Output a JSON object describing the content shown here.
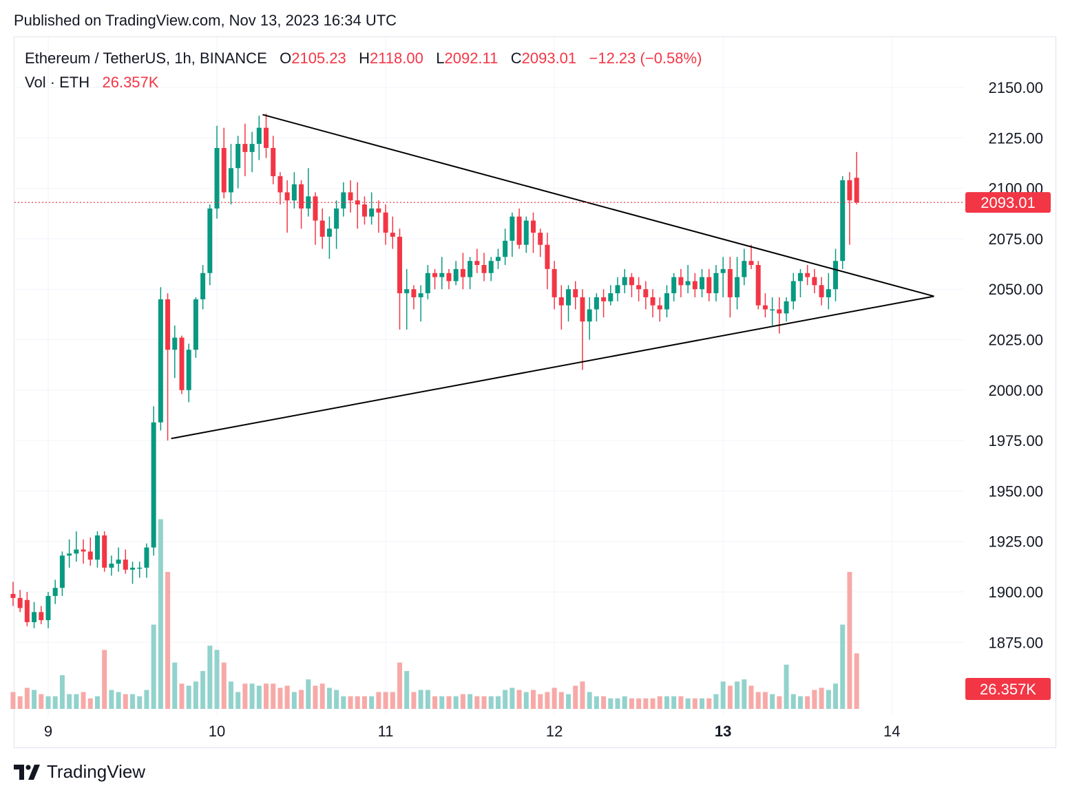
{
  "published": "Published on TradingView.com, Nov 13, 2023 16:34 UTC",
  "legend": {
    "symbol": "Ethereum / TetherUS, 1h, BINANCE",
    "o_label": "O",
    "o_value": "2105.23",
    "h_label": "H",
    "h_value": "2118.00",
    "l_label": "L",
    "l_value": "2092.11",
    "c_label": "C",
    "c_value": "2093.01",
    "change": "−12.23 (−0.58%)",
    "vol_label": "Vol · ETH",
    "vol_value": "26.357K"
  },
  "footer": {
    "brand": "TradingView",
    "logo_icon": "tradingview-logo-icon"
  },
  "colors": {
    "up": "#089981",
    "down": "#f23645",
    "vol_up": "#92d2cc",
    "vol_down": "#f7a9a7",
    "grid": "#f0f3fa",
    "trendline": "#000000"
  },
  "chart_data": {
    "type": "candlestick",
    "symbol": "ETHUSDT",
    "interval": "1h",
    "exchange": "BINANCE",
    "y_ticks": [
      "2150.00",
      "2125.00",
      "2100.00",
      "2075.00",
      "2050.00",
      "2025.00",
      "2000.00",
      "1975.00",
      "1950.00",
      "1925.00",
      "1900.00",
      "1875.00"
    ],
    "x_ticks": [
      {
        "label": "9",
        "t": 0,
        "bold": false
      },
      {
        "label": "10",
        "t": 24,
        "bold": false
      },
      {
        "label": "11",
        "t": 48,
        "bold": false
      },
      {
        "label": "12",
        "t": 72,
        "bold": false
      },
      {
        "label": "13",
        "t": 96,
        "bold": true
      },
      {
        "label": "14",
        "t": 120,
        "bold": false
      }
    ],
    "last_price_label": "2093.01",
    "last_price": 2093.01,
    "last_volume_label": "26.357K",
    "ylim": [
      1858,
      2170
    ],
    "xlim": [
      -5,
      131
    ],
    "volume_scale_max": 80,
    "candles_note": "t = hours from Nov 9 00:00; [t, open, high, low, close, volume_k]",
    "candles": [
      [
        -5,
        1899,
        1905,
        1893,
        1897,
        8
      ],
      [
        -4,
        1897,
        1901,
        1890,
        1892,
        6
      ],
      [
        -3,
        1896,
        1900,
        1883,
        1885,
        10
      ],
      [
        -2,
        1885,
        1895,
        1882,
        1890,
        9
      ],
      [
        -1,
        1890,
        1893,
        1884,
        1886,
        7
      ],
      [
        0,
        1886,
        1900,
        1882,
        1898,
        6
      ],
      [
        1,
        1898,
        1906,
        1894,
        1902,
        6
      ],
      [
        2,
        1902,
        1920,
        1898,
        1918,
        16
      ],
      [
        3,
        1918,
        1926,
        1912,
        1919,
        7
      ],
      [
        4,
        1919,
        1930,
        1915,
        1921,
        7
      ],
      [
        5,
        1921,
        1926,
        1914,
        1920,
        8
      ],
      [
        6,
        1920,
        1927,
        1913,
        1916,
        5
      ],
      [
        7,
        1916,
        1930,
        1912,
        1928,
        6
      ],
      [
        8,
        1928,
        1930,
        1910,
        1912,
        28
      ],
      [
        9,
        1912,
        1918,
        1908,
        1914,
        9
      ],
      [
        10,
        1914,
        1922,
        1910,
        1916,
        8
      ],
      [
        11,
        1916,
        1921,
        1909,
        1911,
        7
      ],
      [
        12,
        1911,
        1915,
        1904,
        1912,
        7
      ],
      [
        13,
        1912,
        1915,
        1907,
        1912,
        6
      ],
      [
        14,
        1912,
        1924,
        1907,
        1922,
        9
      ],
      [
        15,
        1922,
        1992,
        1918,
        1984,
        40
      ],
      [
        16,
        1984,
        2051,
        1980,
        2045,
        90
      ],
      [
        17,
        2045,
        2048,
        1975,
        2020,
        65
      ],
      [
        18,
        2020,
        2032,
        2006,
        2026,
        22
      ],
      [
        19,
        2026,
        2027,
        1998,
        2000,
        12
      ],
      [
        20,
        2000,
        2023,
        1994,
        2020,
        11
      ],
      [
        21,
        2020,
        2046,
        2016,
        2045,
        13
      ],
      [
        22,
        2045,
        2062,
        2040,
        2058,
        18
      ],
      [
        23,
        2058,
        2092,
        2052,
        2090,
        30
      ],
      [
        24,
        2090,
        2131,
        2085,
        2120,
        28
      ],
      [
        25,
        2120,
        2130,
        2095,
        2098,
        22
      ],
      [
        26,
        2098,
        2122,
        2092,
        2110,
        13
      ],
      [
        27,
        2110,
        2126,
        2100,
        2122,
        8
      ],
      [
        28,
        2122,
        2132,
        2106,
        2118,
        12
      ],
      [
        29,
        2118,
        2128,
        2108,
        2122,
        12
      ],
      [
        30,
        2122,
        2136,
        2114,
        2130,
        11
      ],
      [
        31,
        2130,
        2137,
        2115,
        2120,
        12
      ],
      [
        32,
        2120,
        2126,
        2102,
        2106,
        12
      ],
      [
        33,
        2106,
        2108,
        2092,
        2098,
        10
      ],
      [
        34,
        2098,
        2104,
        2078,
        2094,
        11
      ],
      [
        35,
        2094,
        2108,
        2090,
        2102,
        8
      ],
      [
        36,
        2102,
        2104,
        2080,
        2090,
        9
      ],
      [
        37,
        2090,
        2110,
        2086,
        2096,
        14
      ],
      [
        38,
        2096,
        2098,
        2072,
        2084,
        11
      ],
      [
        39,
        2084,
        2090,
        2070,
        2076,
        12
      ],
      [
        40,
        2076,
        2086,
        2065,
        2080,
        10
      ],
      [
        41,
        2080,
        2094,
        2070,
        2090,
        9
      ],
      [
        42,
        2090,
        2103,
        2086,
        2098,
        6
      ],
      [
        43,
        2098,
        2104,
        2088,
        2094,
        6
      ],
      [
        44,
        2094,
        2103,
        2080,
        2092,
        6
      ],
      [
        45,
        2092,
        2096,
        2082,
        2086,
        6
      ],
      [
        46,
        2086,
        2098,
        2082,
        2090,
        6
      ],
      [
        47,
        2090,
        2094,
        2078,
        2088,
        8
      ],
      [
        48,
        2088,
        2092,
        2072,
        2078,
        8
      ],
      [
        49,
        2078,
        2086,
        2070,
        2076,
        8
      ],
      [
        50,
        2076,
        2080,
        2030,
        2048,
        22
      ],
      [
        51,
        2048,
        2060,
        2030,
        2050,
        18
      ],
      [
        52,
        2050,
        2052,
        2040,
        2046,
        8
      ],
      [
        53,
        2046,
        2052,
        2034,
        2048,
        9
      ],
      [
        54,
        2048,
        2062,
        2045,
        2058,
        9
      ],
      [
        55,
        2058,
        2060,
        2050,
        2056,
        6
      ],
      [
        56,
        2056,
        2066,
        2050,
        2058,
        6
      ],
      [
        57,
        2058,
        2060,
        2050,
        2054,
        6
      ],
      [
        58,
        2054,
        2064,
        2052,
        2060,
        6
      ],
      [
        59,
        2060,
        2068,
        2050,
        2056,
        7
      ],
      [
        60,
        2056,
        2066,
        2050,
        2064,
        7
      ],
      [
        61,
        2064,
        2070,
        2058,
        2062,
        6
      ],
      [
        62,
        2062,
        2068,
        2054,
        2058,
        6
      ],
      [
        63,
        2058,
        2066,
        2054,
        2064,
        6
      ],
      [
        64,
        2064,
        2070,
        2060,
        2066,
        6
      ],
      [
        65,
        2066,
        2080,
        2062,
        2074,
        9
      ],
      [
        66,
        2074,
        2088,
        2066,
        2086,
        10
      ],
      [
        67,
        2086,
        2090,
        2070,
        2072,
        9
      ],
      [
        68,
        2072,
        2086,
        2068,
        2084,
        8
      ],
      [
        69,
        2084,
        2088,
        2068,
        2078,
        9
      ],
      [
        70,
        2078,
        2080,
        2066,
        2072,
        7
      ],
      [
        71,
        2072,
        2078,
        2050,
        2060,
        8
      ],
      [
        72,
        2060,
        2064,
        2040,
        2046,
        10
      ],
      [
        73,
        2046,
        2052,
        2030,
        2042,
        8
      ],
      [
        74,
        2042,
        2052,
        2034,
        2050,
        7
      ],
      [
        75,
        2050,
        2054,
        2040,
        2046,
        11
      ],
      [
        76,
        2046,
        2050,
        2010,
        2034,
        13
      ],
      [
        77,
        2034,
        2046,
        2025,
        2040,
        8
      ],
      [
        78,
        2040,
        2048,
        2034,
        2046,
        6
      ],
      [
        79,
        2046,
        2050,
        2036,
        2044,
        6
      ],
      [
        80,
        2044,
        2052,
        2042,
        2048,
        5
      ],
      [
        81,
        2048,
        2056,
        2044,
        2052,
        5
      ],
      [
        82,
        2052,
        2060,
        2048,
        2056,
        6
      ],
      [
        83,
        2056,
        2058,
        2046,
        2052,
        5
      ],
      [
        84,
        2052,
        2056,
        2044,
        2050,
        5
      ],
      [
        85,
        2050,
        2054,
        2040,
        2046,
        5
      ],
      [
        86,
        2046,
        2050,
        2036,
        2042,
        5
      ],
      [
        87,
        2042,
        2046,
        2034,
        2040,
        6
      ],
      [
        88,
        2040,
        2052,
        2036,
        2048,
        6
      ],
      [
        89,
        2048,
        2058,
        2044,
        2056,
        6
      ],
      [
        90,
        2056,
        2060,
        2046,
        2052,
        6
      ],
      [
        91,
        2052,
        2062,
        2048,
        2054,
        5
      ],
      [
        92,
        2054,
        2058,
        2046,
        2050,
        5
      ],
      [
        93,
        2050,
        2060,
        2046,
        2056,
        5
      ],
      [
        94,
        2056,
        2060,
        2044,
        2048,
        5
      ],
      [
        95,
        2048,
        2062,
        2044,
        2058,
        7
      ],
      [
        96,
        2058,
        2066,
        2046,
        2060,
        13
      ],
      [
        97,
        2060,
        2066,
        2036,
        2046,
        11
      ],
      [
        98,
        2046,
        2066,
        2040,
        2056,
        13
      ],
      [
        99,
        2056,
        2070,
        2052,
        2064,
        14
      ],
      [
        100,
        2064,
        2072,
        2060,
        2062,
        11
      ],
      [
        101,
        2062,
        2064,
        2040,
        2042,
        8
      ],
      [
        102,
        2042,
        2048,
        2036,
        2040,
        8
      ],
      [
        103,
        2040,
        2046,
        2032,
        2040,
        7
      ],
      [
        104,
        2040,
        2046,
        2028,
        2038,
        6
      ],
      [
        105,
        2038,
        2046,
        2034,
        2044,
        21
      ],
      [
        106,
        2044,
        2058,
        2040,
        2054,
        7
      ],
      [
        107,
        2054,
        2060,
        2046,
        2058,
        6
      ],
      [
        108,
        2058,
        2062,
        2052,
        2056,
        6
      ],
      [
        109,
        2056,
        2060,
        2048,
        2052,
        9
      ],
      [
        110,
        2052,
        2056,
        2042,
        2046,
        10
      ],
      [
        111,
        2046,
        2058,
        2040,
        2050,
        9
      ],
      [
        112,
        2050,
        2070,
        2044,
        2064,
        12
      ],
      [
        113,
        2064,
        2106,
        2060,
        2104,
        40
      ],
      [
        114,
        2104,
        2108,
        2072,
        2094,
        65
      ],
      [
        115,
        2105.23,
        2118,
        2092.11,
        2093.01,
        26.357
      ]
    ],
    "trendlines": [
      {
        "name": "upper",
        "from": [
          30.5,
          2136.5
        ],
        "to": [
          126,
          2046.5
        ]
      },
      {
        "name": "lower",
        "from": [
          17.5,
          1976
        ],
        "to": [
          126,
          2046.5
        ]
      }
    ]
  }
}
